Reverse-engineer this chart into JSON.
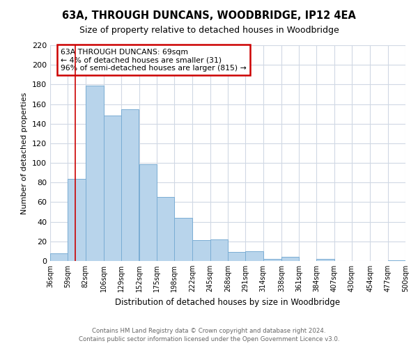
{
  "title": "63A, THROUGH DUNCANS, WOODBRIDGE, IP12 4EA",
  "subtitle": "Size of property relative to detached houses in Woodbridge",
  "xlabel": "Distribution of detached houses by size in Woodbridge",
  "ylabel": "Number of detached properties",
  "bar_color": "#b8d4eb",
  "bar_edge_color": "#7aadd4",
  "background_color": "#ffffff",
  "grid_color": "#d0d8e4",
  "bins": [
    36,
    59,
    82,
    106,
    129,
    152,
    175,
    198,
    222,
    245,
    268,
    291,
    314,
    338,
    361,
    384,
    407,
    430,
    454,
    477,
    500
  ],
  "bin_labels": [
    "36sqm",
    "59sqm",
    "82sqm",
    "106sqm",
    "129sqm",
    "152sqm",
    "175sqm",
    "198sqm",
    "222sqm",
    "245sqm",
    "268sqm",
    "291sqm",
    "314sqm",
    "338sqm",
    "361sqm",
    "384sqm",
    "407sqm",
    "430sqm",
    "454sqm",
    "477sqm",
    "500sqm"
  ],
  "values": [
    8,
    84,
    179,
    148,
    155,
    99,
    65,
    44,
    21,
    22,
    9,
    10,
    2,
    4,
    0,
    2,
    0,
    0,
    0,
    1
  ],
  "ylim": [
    0,
    220
  ],
  "yticks": [
    0,
    20,
    40,
    60,
    80,
    100,
    120,
    140,
    160,
    180,
    200,
    220
  ],
  "vline_x": 69,
  "vline_color": "#cc0000",
  "annotation_line1": "63A THROUGH DUNCANS: 69sqm",
  "annotation_line2": "← 4% of detached houses are smaller (31)",
  "annotation_line3": "96% of semi-detached houses are larger (815) →",
  "footer_line1": "Contains HM Land Registry data © Crown copyright and database right 2024.",
  "footer_line2": "Contains public sector information licensed under the Open Government Licence v3.0."
}
